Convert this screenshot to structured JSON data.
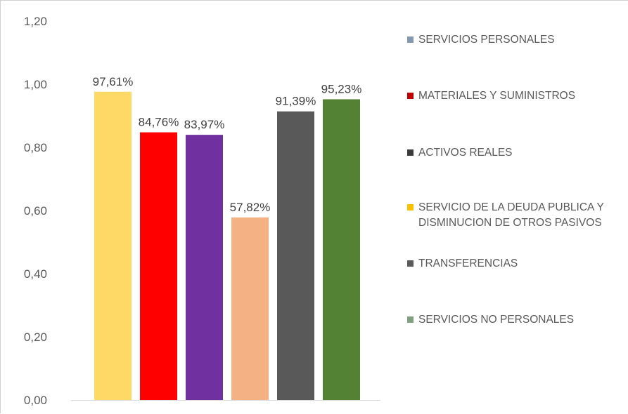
{
  "chart_data": {
    "type": "bar",
    "categories": [
      "SERVICIOS PERSONALES",
      "MATERIALES Y SUMINISTROS",
      "ACTIVOS REALES",
      "SERVICIO DE LA DEUDA PUBLICA Y DISMINUCION DE OTROS PASIVOS",
      "TRANSFERENCIAS",
      "SERVICIOS NO PERSONALES"
    ],
    "values": [
      0.9761,
      0.8476,
      0.8397,
      0.5782,
      0.9139,
      0.9523
    ],
    "data_labels": [
      "97,61%",
      "84,76%",
      "83,97%",
      "57,82%",
      "91,39%",
      "95,23%"
    ],
    "bar_colors": [
      "#FFD966",
      "#FF0000",
      "#7030A0",
      "#F4B183",
      "#595959",
      "#548235"
    ],
    "ylim": [
      0,
      1.2
    ],
    "yticks": [
      {
        "value": 0,
        "label": "0,00"
      },
      {
        "value": 0.2,
        "label": "0,20"
      },
      {
        "value": 0.4,
        "label": "0,40"
      },
      {
        "value": 0.6,
        "label": "0,60"
      },
      {
        "value": 0.8,
        "label": "0,80"
      },
      {
        "value": 1.0,
        "label": "1,00"
      },
      {
        "value": 1.2,
        "label": "1,20"
      }
    ],
    "grid": false,
    "legend_placement": "right",
    "legend": [
      {
        "label": "SERVICIOS PERSONALES",
        "color": "#8497B0"
      },
      {
        "label": "MATERIALES Y SUMINISTROS",
        "color": "#C00000"
      },
      {
        "label": "ACTIVOS REALES",
        "color": "#3B3B3B"
      },
      {
        "label": "SERVICIO DE LA DEUDA PUBLICA Y DISMINUCION DE OTROS PASIVOS",
        "color": "#FFC000"
      },
      {
        "label": "TRANSFERENCIAS",
        "color": "#595959"
      },
      {
        "label": "SERVICIOS NO PERSONALES",
        "color": "#7F9F7F"
      }
    ]
  }
}
